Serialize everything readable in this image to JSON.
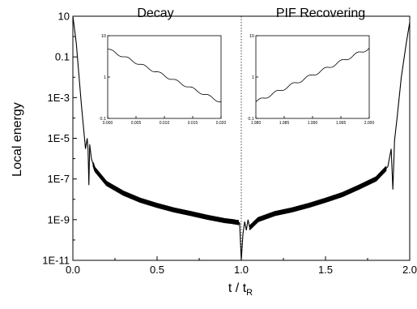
{
  "chart_data": [
    {
      "type": "line",
      "role": "main",
      "xlabel": "t / t",
      "xlabel_sub": "R",
      "ylabel": "Local energy",
      "yscale": "log",
      "xlim": [
        0.0,
        2.0
      ],
      "ylim": [
        1e-11,
        10
      ],
      "xticks": [
        0.0,
        0.5,
        1.0,
        1.5,
        2.0
      ],
      "xtick_labels": [
        "0.0",
        "0.5",
        "1.0",
        "1.5",
        "2.0"
      ],
      "yticks": [
        10,
        0.1,
        0.001,
        1e-05,
        1e-07,
        1e-09,
        1e-11
      ],
      "ytick_labels": [
        "10",
        "0.1",
        "1E-3",
        "1E-5",
        "1E-7",
        "1E-9",
        "1E-11"
      ],
      "annotations": [
        "Decay",
        "PIF Recovering"
      ],
      "divider_x": 1.0,
      "grid": false,
      "series": [
        {
          "x": [
            0.0,
            0.02,
            0.05,
            0.075,
            0.085,
            0.09,
            0.095,
            0.1,
            0.11,
            0.13,
            0.2,
            0.3,
            0.4,
            0.5,
            0.6,
            0.7,
            0.8,
            0.9,
            0.95,
            0.99,
            1.0,
            1.01,
            1.02,
            1.03,
            1.04,
            1.05,
            1.1,
            1.2,
            1.3,
            1.4,
            1.5,
            1.6,
            1.7,
            1.8,
            1.87,
            1.89,
            1.9,
            1.91,
            1.925,
            1.95,
            1.98,
            2.0
          ],
          "y": [
            10,
            0.5,
            0.0005,
            3e-06,
            1e-05,
            3e-06,
            5e-08,
            5e-06,
            1e-06,
            3e-07,
            6e-08,
            2e-08,
            9e-09,
            5e-09,
            3e-09,
            2e-09,
            1.3e-09,
            9e-10,
            8e-10,
            7e-10,
            1e-11,
            2e-10,
            8e-10,
            3e-10,
            1e-09,
            4e-10,
            1e-09,
            2e-09,
            3e-09,
            5e-09,
            9e-09,
            1.7e-08,
            4e-08,
            1e-07,
            4e-07,
            3e-06,
            3e-08,
            8e-06,
            0.0001,
            0.01,
            0.5,
            5
          ]
        }
      ]
    },
    {
      "type": "line",
      "role": "inset-decay",
      "yscale": "log",
      "xlim": [
        0.0,
        0.02
      ],
      "ylim": [
        0.1,
        10
      ],
      "xticks": [
        0.0,
        0.005,
        0.01,
        0.015,
        0.02
      ],
      "xtick_labels": [
        "0.000",
        "0.005",
        "0.010",
        "0.015",
        "0.020"
      ],
      "yticks": [
        10,
        1,
        0.1
      ],
      "ytick_labels": [
        "10",
        "1",
        "0.1"
      ],
      "series": [
        {
          "x_start": 0.0,
          "x_end": 0.02,
          "y_start": 4.7,
          "y_end": 0.25,
          "ripples": 7,
          "ripple_amplitude_log10": 0.03
        }
      ]
    },
    {
      "type": "line",
      "role": "inset-recovering",
      "yscale": "log",
      "xlim": [
        1.98,
        2.0
      ],
      "ylim": [
        0.1,
        10
      ],
      "xticks": [
        1.98,
        1.985,
        1.99,
        1.995,
        2.0
      ],
      "xtick_labels": [
        "1.980",
        "1.985",
        "1.990",
        "1.995",
        "2.000"
      ],
      "yticks": [
        10,
        1,
        0.1
      ],
      "ytick_labels": [
        "10",
        "1",
        "0.1"
      ],
      "series": [
        {
          "x_start": 1.98,
          "x_end": 2.0,
          "y_start": 0.25,
          "y_end": 5.0,
          "ripples": 7,
          "ripple_amplitude_log10": 0.035
        }
      ]
    }
  ]
}
